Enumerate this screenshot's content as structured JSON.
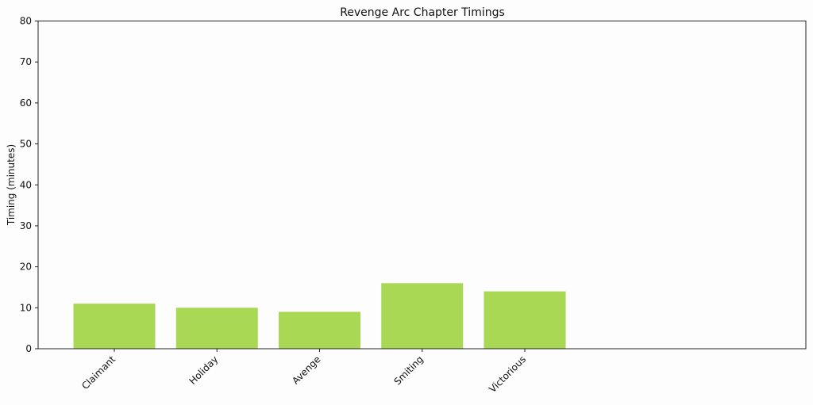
{
  "chart_data": {
    "type": "bar",
    "title": "Revenge Arc Chapter Timings",
    "xlabel": "",
    "ylabel": "Timing (minutes)",
    "categories": [
      "Claimant",
      "Holiday",
      "Avenge",
      "Smiting",
      "Victorious"
    ],
    "values": [
      11,
      10,
      9,
      16,
      14
    ],
    "ylim": [
      0,
      80
    ],
    "yticks": [
      0,
      10,
      20,
      30,
      40,
      50,
      60,
      70,
      80
    ],
    "bar_color": "#a8d854",
    "grid": false
  }
}
